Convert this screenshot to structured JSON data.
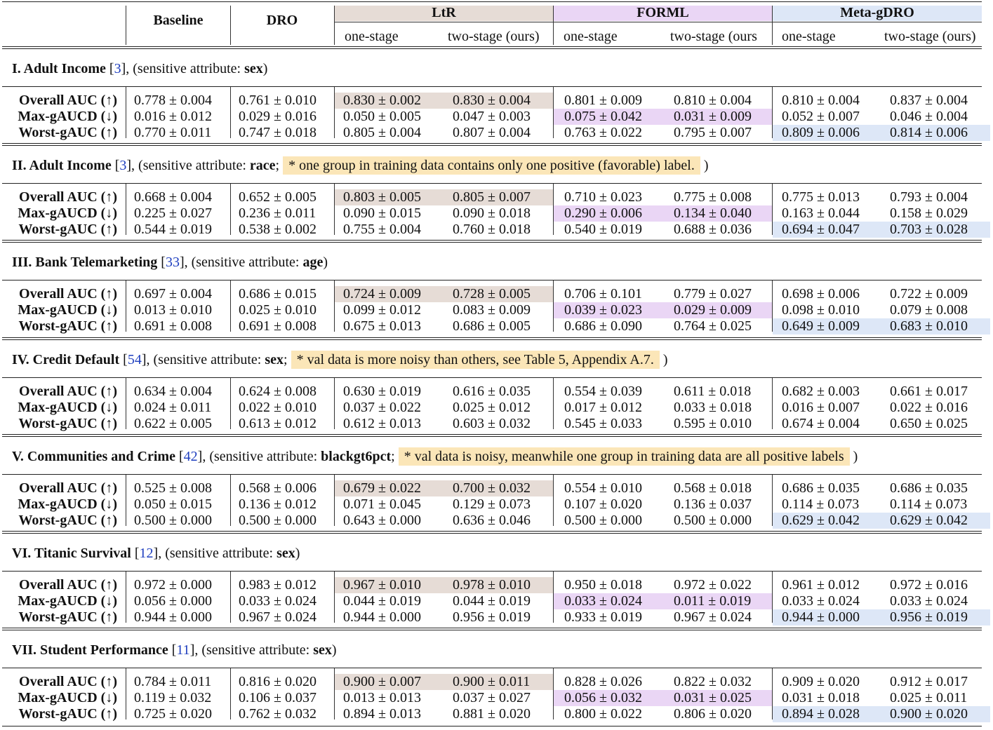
{
  "header": {
    "baseline": "Baseline",
    "dro": "DRO",
    "groups": [
      {
        "name": "LtR",
        "color": "#e6dcd6",
        "subs": [
          "one-stage",
          "two-stage (ours)"
        ]
      },
      {
        "name": "FORML",
        "color": "#ead6f5",
        "subs": [
          "one-stage",
          "two-stage (ours"
        ]
      },
      {
        "name": "Meta-gDRO",
        "color": "#dde7f7",
        "subs": [
          "one-stage",
          "two-stage (ours)"
        ]
      }
    ]
  },
  "metrics": [
    "Overall AUC (↑)",
    "Max-gAUCD (↓)",
    "Worst-gAUC (↑)"
  ],
  "colors": {
    "ltr": "#e6dcd6",
    "forml": "#ead6f5",
    "meta": "#dde7f7",
    "note": "#fbe6b8",
    "cite": "#1f3fbf"
  },
  "sections": [
    {
      "title": "I. Adult Income",
      "cite": "3",
      "attr_prefix": ", (sensitive attribute: ",
      "attr": "sex",
      "note": "",
      "suffix": ")",
      "rows": [
        [
          "0.778 ± 0.004",
          "0.761 ± 0.010",
          "0.830 ± 0.002",
          "0.830 ± 0.004",
          "0.801 ± 0.009",
          "0.810 ± 0.004",
          "0.810 ± 0.004",
          "0.837 ± 0.004"
        ],
        [
          "0.016 ± 0.012",
          "0.029 ± 0.016",
          "0.050 ± 0.005",
          "0.047 ± 0.003",
          "0.075 ± 0.042",
          "0.031 ± 0.009",
          "0.052 ± 0.007",
          "0.046 ± 0.004"
        ],
        [
          "0.770 ± 0.011",
          "0.747 ± 0.018",
          "0.805 ± 0.004",
          "0.807 ± 0.004",
          "0.763 ± 0.022",
          "0.795 ± 0.007",
          "0.809 ± 0.006",
          "0.814 ± 0.006"
        ]
      ]
    },
    {
      "title": "II. Adult Income",
      "cite": "3",
      "attr_prefix": ", (sensitive attribute: ",
      "attr": "race",
      "note": "* one group in training data contains only one positive (favorable) label.",
      "suffix": ")",
      "rows": [
        [
          "0.668 ± 0.004",
          "0.652 ± 0.005",
          "0.803 ± 0.005",
          "0.805 ± 0.007",
          "0.710 ± 0.023",
          "0.775 ± 0.008",
          "0.775 ± 0.013",
          "0.793 ± 0.004"
        ],
        [
          "0.225 ± 0.027",
          "0.236 ± 0.011",
          "0.090 ± 0.015",
          "0.090 ± 0.018",
          "0.290 ± 0.006",
          "0.134 ± 0.040",
          "0.163 ± 0.044",
          "0.158 ± 0.029"
        ],
        [
          "0.544 ± 0.019",
          "0.538 ± 0.002",
          "0.755 ± 0.004",
          "0.760 ± 0.018",
          "0.540 ± 0.019",
          "0.688 ± 0.036",
          "0.694 ± 0.047",
          "0.703 ± 0.028"
        ]
      ]
    },
    {
      "title": "III. Bank Telemarketing",
      "cite": "33",
      "attr_prefix": ", (sensitive attribute: ",
      "attr": "age",
      "note": "",
      "suffix": ")",
      "rows": [
        [
          "0.697 ± 0.004",
          "0.686 ± 0.015",
          "0.724 ± 0.009",
          "0.728 ± 0.005",
          "0.706 ± 0.101",
          "0.779 ± 0.027",
          "0.698 ± 0.006",
          "0.722 ± 0.009"
        ],
        [
          "0.013 ± 0.010",
          "0.025 ± 0.010",
          "0.099 ± 0.012",
          "0.083 ± 0.009",
          "0.039 ± 0.023",
          "0.029 ± 0.009",
          "0.098 ± 0.010",
          "0.079 ± 0.008"
        ],
        [
          "0.691 ± 0.008",
          "0.691 ± 0.008",
          "0.675 ± 0.013",
          "0.686 ± 0.005",
          "0.686 ± 0.090",
          "0.764 ± 0.025",
          "0.649 ± 0.009",
          "0.683 ± 0.010"
        ]
      ]
    },
    {
      "title": "IV. Credit Default",
      "cite": "54",
      "attr_prefix": ", (sensitive attribute: ",
      "attr": "sex",
      "note": "* val data is more noisy than others, see Table 5, Appendix A.7.",
      "suffix": ")",
      "rows": [
        [
          "0.634 ± 0.004",
          "0.624 ± 0.008",
          "0.630 ± 0.019",
          "0.616 ± 0.035",
          "0.554 ± 0.039",
          "0.611 ± 0.018",
          "0.682 ± 0.003",
          "0.661 ± 0.017"
        ],
        [
          "0.024 ± 0.011",
          "0.022 ± 0.010",
          "0.037 ± 0.022",
          "0.025 ± 0.012",
          "0.017 ± 0.012",
          "0.033 ± 0.018",
          "0.016 ± 0.007",
          "0.022 ± 0.016"
        ],
        [
          "0.622 ± 0.005",
          "0.613 ± 0.012",
          "0.612 ± 0.013",
          "0.603 ± 0.032",
          "0.545 ± 0.033",
          "0.595 ± 0.010",
          "0.674 ± 0.004",
          "0.650 ± 0.025"
        ]
      ]
    },
    {
      "title": "V. Communities and Crime",
      "cite": "42",
      "attr_prefix": ", (sensitive attribute: ",
      "attr": "blackgt6pct",
      "note": "* val data is noisy, meanwhile one group in training data are all positive labels",
      "suffix": ")",
      "rows": [
        [
          "0.525 ± 0.008",
          "0.568 ± 0.006",
          "0.679 ± 0.022",
          "0.700 ± 0.032",
          "0.554 ± 0.010",
          "0.568 ± 0.018",
          "0.686 ± 0.035",
          "0.686 ± 0.035"
        ],
        [
          "0.050 ± 0.015",
          "0.136 ± 0.012",
          "0.071 ± 0.045",
          "0.129 ± 0.073",
          "0.107 ± 0.020",
          "0.136 ± 0.037",
          "0.114 ± 0.073",
          "0.114 ± 0.073"
        ],
        [
          "0.500 ± 0.000",
          "0.500 ± 0.000",
          "0.643 ± 0.000",
          "0.636 ± 0.046",
          "0.500 ± 0.000",
          "0.500 ± 0.000",
          "0.629 ± 0.042",
          "0.629 ± 0.042"
        ]
      ]
    },
    {
      "title": "VI. Titanic Survival",
      "cite": "12",
      "attr_prefix": ", (sensitive attribute: ",
      "attr": "sex",
      "note": "",
      "suffix": ")",
      "rows": [
        [
          "0.972 ± 0.000",
          "0.983 ± 0.012",
          "0.967 ± 0.010",
          "0.978 ± 0.010",
          "0.950 ± 0.018",
          "0.972 ± 0.022",
          "0.961 ± 0.012",
          "0.972 ± 0.016"
        ],
        [
          "0.056 ± 0.000",
          "0.033 ± 0.024",
          "0.044 ± 0.019",
          "0.044 ± 0.019",
          "0.033 ± 0.024",
          "0.011 ± 0.019",
          "0.033 ± 0.024",
          "0.033 ± 0.024"
        ],
        [
          "0.944 ± 0.000",
          "0.967 ± 0.024",
          "0.944 ± 0.000",
          "0.956 ± 0.019",
          "0.933 ± 0.019",
          "0.967 ± 0.024",
          "0.944 ± 0.000",
          "0.956 ± 0.019"
        ]
      ]
    },
    {
      "title": "VII. Student Performance",
      "cite": "11",
      "attr_prefix": ", (sensitive attribute: ",
      "attr": "sex",
      "note": "",
      "suffix": ")",
      "rows": [
        [
          "0.784 ± 0.011",
          "0.816 ± 0.020",
          "0.900 ± 0.007",
          "0.900 ± 0.011",
          "0.828 ± 0.026",
          "0.822 ± 0.032",
          "0.909 ± 0.020",
          "0.912 ± 0.017"
        ],
        [
          "0.119 ± 0.032",
          "0.106 ± 0.037",
          "0.013 ± 0.013",
          "0.037 ± 0.027",
          "0.056 ± 0.032",
          "0.031 ± 0.025",
          "0.031 ± 0.018",
          "0.025 ± 0.011"
        ],
        [
          "0.725 ± 0.020",
          "0.762 ± 0.032",
          "0.894 ± 0.013",
          "0.881 ± 0.020",
          "0.800 ± 0.022",
          "0.806 ± 0.020",
          "0.894 ± 0.028",
          "0.900 ± 0.020"
        ]
      ]
    }
  ],
  "highlights": [
    {
      "ltr": 0,
      "forml": 1,
      "meta": 2
    },
    {
      "ltr": 0,
      "forml": 1,
      "meta": 2
    },
    {
      "ltr": 0,
      "forml": 1,
      "meta": 2
    },
    {
      "ltr": -1,
      "forml": -1,
      "meta": -1
    },
    {
      "ltr": 0,
      "forml": -1,
      "meta": 2
    },
    {
      "ltr": 0,
      "forml": 1,
      "meta": 2
    },
    {
      "ltr": 0,
      "forml": 1,
      "meta": 2
    }
  ]
}
